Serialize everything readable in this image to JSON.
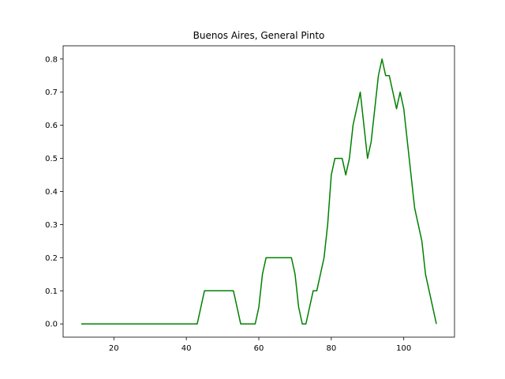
{
  "chart_data": {
    "type": "line",
    "title": "Buenos Aires, General Pinto",
    "xlabel": "",
    "ylabel": "",
    "xlim": [
      6,
      114
    ],
    "ylim": [
      -0.04,
      0.84
    ],
    "xticks": [
      20,
      40,
      60,
      80,
      100
    ],
    "yticks": [
      0.0,
      0.1,
      0.2,
      0.3,
      0.4,
      0.5,
      0.6,
      0.7,
      0.8
    ],
    "ytick_labels": [
      "0.0",
      "0.1",
      "0.2",
      "0.3",
      "0.4",
      "0.5",
      "0.6",
      "0.7",
      "0.8"
    ],
    "grid": false,
    "line_color": "#008000",
    "series": [
      {
        "x": [
          11,
          43,
          45,
          53,
          55,
          59,
          60,
          61,
          62,
          69,
          70,
          71,
          72,
          73,
          74,
          75,
          76,
          78,
          79,
          80,
          81,
          83,
          84,
          85,
          86,
          88,
          90,
          91,
          93,
          94,
          95,
          96,
          98,
          99,
          100,
          103,
          105,
          106,
          109
        ],
        "y": [
          0.0,
          0.0,
          0.1,
          0.1,
          0.0,
          0.0,
          0.05,
          0.15,
          0.2,
          0.2,
          0.15,
          0.05,
          0.0,
          0.0,
          0.05,
          0.1,
          0.1,
          0.2,
          0.3,
          0.45,
          0.5,
          0.5,
          0.45,
          0.5,
          0.6,
          0.7,
          0.5,
          0.55,
          0.75,
          0.8,
          0.75,
          0.75,
          0.65,
          0.7,
          0.65,
          0.35,
          0.25,
          0.15,
          0.0
        ]
      }
    ]
  }
}
